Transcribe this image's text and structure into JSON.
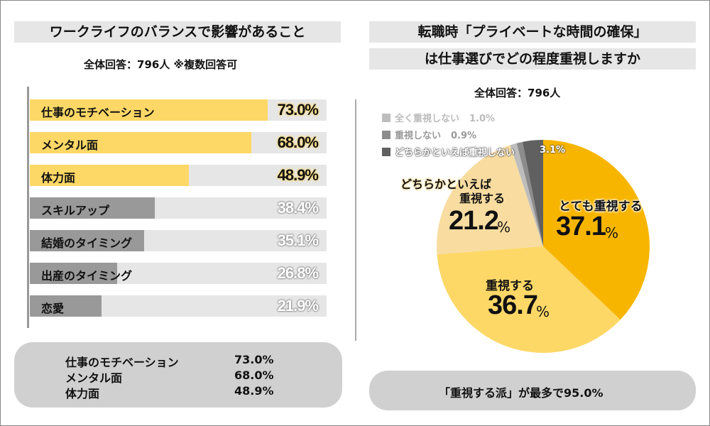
{
  "left": {
    "title": "ワークライフのバランスで影響があること",
    "subtitle": "全体回答：796人 ※複数回答可",
    "summary": [
      {
        "label": "仕事のモチベーション",
        "value": "73.0%"
      },
      {
        "label": "メンタル面",
        "value": "68.0%"
      },
      {
        "label": "体力面",
        "value": "48.9%"
      }
    ]
  },
  "right": {
    "title_line1": "転職時「プライベートな時間の確保」",
    "title_line2": "は仕事選びでどの程度重視しますか",
    "subtitle": "全体回答：796人",
    "conclusion": "「重視する派」が最多で95.0%"
  },
  "chart_data": [
    {
      "type": "bar",
      "orientation": "horizontal",
      "categories": [
        "仕事のモチベーション",
        "メンタル面",
        "体力面",
        "スキルアップ",
        "結婚のタイミング",
        "出産のタイミング",
        "恋愛"
      ],
      "values": [
        73.0,
        68.0,
        48.9,
        38.4,
        35.1,
        26.8,
        21.9
      ],
      "value_labels": [
        "73.0%",
        "68.0%",
        "48.9%",
        "38.4%",
        "35.1%",
        "26.8%",
        "21.9%"
      ],
      "highlight_top": 3,
      "colors": {
        "highlight": "#fdd866",
        "other": "#999999",
        "track": "#e6e6e6"
      }
    },
    {
      "type": "pie",
      "slices": [
        {
          "name": "とても重視する",
          "value": 37.1,
          "label": "37.1",
          "color": "#f8b500"
        },
        {
          "name": "重視する",
          "value": 36.7,
          "label": "36.7",
          "color": "#fdd866"
        },
        {
          "name": "どちらかといえば重視する",
          "name_line1": "どちらかといえば",
          "name_line2": "重視する",
          "value": 21.2,
          "label": "21.2",
          "color": "#f8dca0"
        },
        {
          "name": "全く重視しない",
          "value": 1.0,
          "label": "1.0%",
          "color": "#bdbdbd"
        },
        {
          "name": "重視しない",
          "value": 0.9,
          "label": "0.9%",
          "color": "#8c8c8c"
        },
        {
          "name": "どちらかといえば重視しない",
          "value": 3.1,
          "label": "3.1%",
          "color": "#606060"
        }
      ],
      "percent_sign": "%"
    }
  ]
}
